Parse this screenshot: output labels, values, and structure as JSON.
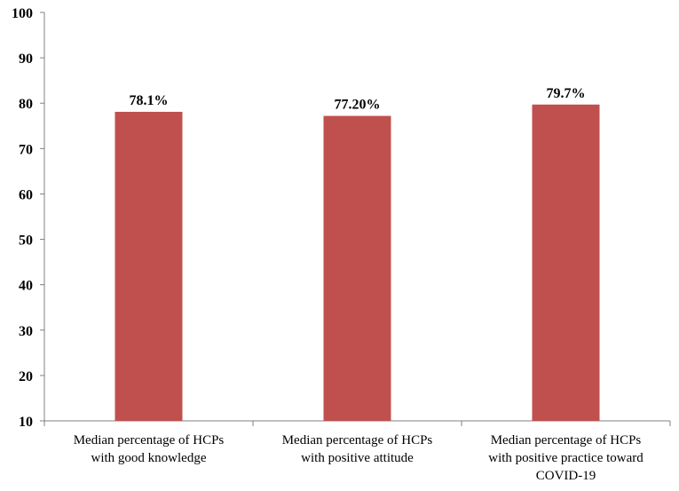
{
  "chart_data": {
    "type": "bar",
    "categories": [
      [
        "Median percentage of HCPs",
        "with good knowledge"
      ],
      [
        "Median percentage of HCPs",
        "with positive attitude"
      ],
      [
        "Median percentage of HCPs",
        "with positive practice toward",
        "COVID-19"
      ]
    ],
    "values": [
      78.1,
      77.2,
      79.7
    ],
    "data_labels": [
      "78.1%",
      "77.20%",
      "79.7%"
    ],
    "yticks": [
      10,
      20,
      30,
      40,
      50,
      60,
      70,
      80,
      90,
      100
    ],
    "ylim": [
      10,
      100
    ],
    "bar_color": "#c0504d",
    "grid": false,
    "legend": "none"
  }
}
